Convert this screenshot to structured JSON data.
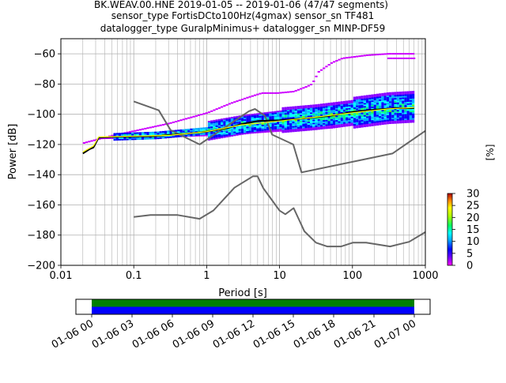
{
  "chart_data": {
    "type": "heatmap",
    "title_lines": [
      "BK.WEAV.00.HNE   2019-01-05 -- 2019-01-06  (47/47 segments)",
      "sensor_type FortisDCto100Hz(4gmax) sensor_sn TF481",
      "datalogger_type GuralpMinimus+ datalogger_sn MINP-DF59"
    ],
    "xlabel": "Period [s]",
    "ylabel": "Power [dB]",
    "xscale": "log",
    "xlim": [
      0.01,
      1000
    ],
    "ylim": [
      -200,
      -50
    ],
    "x_ticks": [
      {
        "v": 0.01,
        "label": "0.01"
      },
      {
        "v": 0.1,
        "label": "0.1"
      },
      {
        "v": 1,
        "label": "1"
      },
      {
        "v": 10,
        "label": "10"
      },
      {
        "v": 100,
        "label": "100"
      },
      {
        "v": 1000,
        "label": "1000"
      }
    ],
    "y_ticks": [
      {
        "v": -60,
        "label": "−60"
      },
      {
        "v": -80,
        "label": "−80"
      },
      {
        "v": -100,
        "label": "−100"
      },
      {
        "v": -120,
        "label": "−120"
      },
      {
        "v": -140,
        "label": "−140"
      },
      {
        "v": -160,
        "label": "−160"
      },
      {
        "v": -180,
        "label": "−180"
      },
      {
        "v": -200,
        "label": "−200"
      }
    ],
    "grid": true,
    "colorbar": {
      "label": "[%]",
      "min": 0,
      "max": 30,
      "ticks": [
        {
          "v": 0,
          "label": "0"
        },
        {
          "v": 5,
          "label": "5"
        },
        {
          "v": 10,
          "label": "10"
        },
        {
          "v": 15,
          "label": "15"
        },
        {
          "v": 20,
          "label": "20"
        },
        {
          "v": 25,
          "label": "25"
        },
        {
          "v": 30,
          "label": "30"
        }
      ]
    },
    "series": [
      {
        "role": "nhnm",
        "color": "#666666",
        "points": [
          [
            0.1,
            -91.5
          ],
          [
            0.22,
            -97.4
          ],
          [
            0.32,
            -110.5
          ],
          [
            0.8,
            -120
          ],
          [
            3.8,
            -98
          ],
          [
            4.6,
            -96.5
          ],
          [
            6.3,
            -101
          ],
          [
            7.9,
            -113.5
          ],
          [
            15.4,
            -120
          ],
          [
            20,
            -138.5
          ],
          [
            354,
            -126
          ],
          [
            1000,
            -111
          ]
        ]
      },
      {
        "role": "nlnm",
        "color": "#666666",
        "points": [
          [
            0.1,
            -168
          ],
          [
            0.17,
            -166.7
          ],
          [
            0.4,
            -166.7
          ],
          [
            0.8,
            -169.2
          ],
          [
            1.24,
            -163.7
          ],
          [
            2.4,
            -148.6
          ],
          [
            4.3,
            -141.1
          ],
          [
            5,
            -141.1
          ],
          [
            6,
            -149
          ],
          [
            10,
            -163.8
          ],
          [
            12,
            -166.2
          ],
          [
            15.6,
            -162.1
          ],
          [
            21.9,
            -177.5
          ],
          [
            31.6,
            -185
          ],
          [
            45,
            -187.5
          ],
          [
            70,
            -187.5
          ],
          [
            101,
            -185
          ],
          [
            154,
            -185
          ],
          [
            328,
            -187.5
          ],
          [
            600,
            -184.4
          ],
          [
            1000,
            -178
          ]
        ]
      },
      {
        "role": "mean",
        "color": "#000000",
        "points": [
          [
            0.02,
            -126
          ],
          [
            0.025,
            -123
          ],
          [
            0.028,
            -122
          ],
          [
            0.033,
            -115.5
          ],
          [
            0.05,
            -115
          ],
          [
            0.1,
            -114.8
          ],
          [
            0.2,
            -114.5
          ],
          [
            0.5,
            -113
          ],
          [
            1,
            -111.5
          ],
          [
            2,
            -109
          ],
          [
            3,
            -106.5
          ],
          [
            5,
            -104.5
          ],
          [
            10,
            -104
          ],
          [
            20,
            -103
          ],
          [
            50,
            -101
          ],
          [
            100,
            -98.5
          ],
          [
            200,
            -97
          ],
          [
            400,
            -96
          ],
          [
            700,
            -96
          ]
        ]
      },
      {
        "role": "mode",
        "color": "#ffff00",
        "points": [
          [
            0.02,
            -125
          ],
          [
            0.028,
            -121
          ],
          [
            0.033,
            -115
          ],
          [
            0.1,
            -114.5
          ],
          [
            0.3,
            -114
          ],
          [
            1,
            -111.5
          ],
          [
            3,
            -107
          ],
          [
            10,
            -104.5
          ],
          [
            30,
            -102
          ],
          [
            100,
            -99
          ],
          [
            300,
            -96.5
          ],
          [
            700,
            -95.5
          ]
        ]
      }
    ],
    "pdf_bands": [
      {
        "role": "upper-magenta",
        "points": [
          [
            0.02,
            -119
          ],
          [
            0.05,
            -114
          ],
          [
            0.1,
            -111
          ],
          [
            0.3,
            -106
          ],
          [
            1,
            -99
          ],
          [
            2,
            -93
          ],
          [
            3.5,
            -89
          ],
          [
            5.5,
            -86
          ],
          [
            9,
            -86
          ],
          [
            15,
            -85
          ],
          [
            22,
            -82
          ],
          [
            27,
            -80
          ],
          [
            33,
            -72
          ],
          [
            50,
            -66
          ],
          [
            70,
            -63
          ],
          [
            150,
            -61
          ],
          [
            300,
            -60
          ],
          [
            700,
            -60
          ]
        ]
      },
      {
        "role": "upper-magenta-outlier",
        "points": [
          [
            300,
            -63
          ],
          [
            500,
            -63
          ],
          [
            700,
            -63
          ]
        ]
      },
      {
        "role": "lower-magenta",
        "points": [
          [
            0.03,
            -116
          ],
          [
            0.1,
            -115.5
          ],
          [
            1,
            -114
          ],
          [
            5,
            -112
          ],
          [
            10,
            -111
          ],
          [
            50,
            -109
          ],
          [
            100,
            -107
          ],
          [
            300,
            -104
          ],
          [
            700,
            -101
          ]
        ]
      },
      {
        "role": "core",
        "points": [
          [
            0.05,
            -115
          ],
          [
            0.2,
            -114
          ],
          [
            1,
            -111
          ],
          [
            3,
            -107
          ],
          [
            10,
            -104
          ],
          [
            30,
            -102
          ],
          [
            100,
            -99
          ],
          [
            300,
            -96
          ],
          [
            700,
            -95
          ]
        ]
      }
    ],
    "time_axis": {
      "ticks": [
        "01-06 00",
        "01-06 03",
        "01-06 06",
        "01-06 09",
        "01-06 12",
        "01-06 15",
        "01-06 18",
        "01-06 21",
        "01-07 00"
      ],
      "bars": [
        {
          "role": "segments-available",
          "color": "#008000",
          "start": 0,
          "end": 1
        },
        {
          "role": "segments-used",
          "color": "#0000ff",
          "start": 0,
          "end": 1
        }
      ]
    }
  }
}
